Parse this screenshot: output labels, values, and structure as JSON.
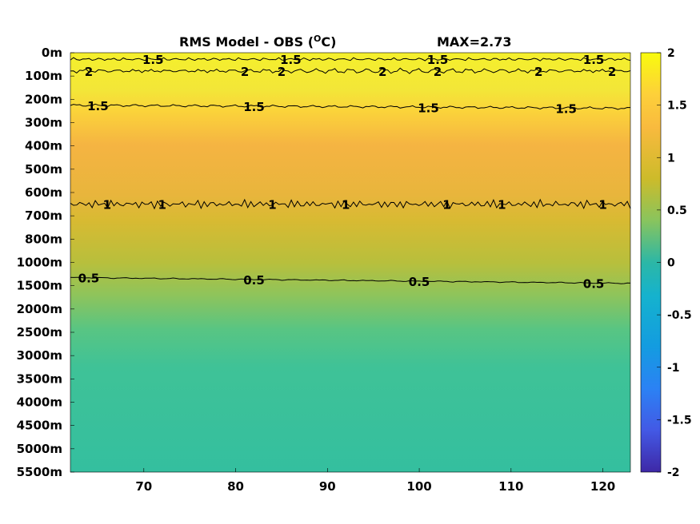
{
  "chart_data": {
    "type": "heatmap",
    "title": "RMS Model - OBS (",
    "title_superscript": "O",
    "title_unit": "C)",
    "max_label": "MAX=2.73",
    "x_ticks": [
      70,
      80,
      90,
      100,
      110,
      120
    ],
    "x_range": [
      62,
      123
    ],
    "y_ticks": [
      "0m",
      "100m",
      "200m",
      "300m",
      "400m",
      "500m",
      "600m",
      "700m",
      "800m",
      "1000m",
      "1500m",
      "2000m",
      "2500m",
      "3000m",
      "3500m",
      "4000m",
      "4500m",
      "5000m",
      "5500m"
    ],
    "colorbar": {
      "ticks": [
        2,
        1.5,
        1,
        0.5,
        0,
        -0.5,
        -1,
        -1.5,
        -2
      ],
      "range": [
        -2,
        2
      ],
      "colormap": "parula"
    },
    "depth_profile": [
      {
        "level": "0m",
        "value": 2.0
      },
      {
        "level": "100m",
        "value": 1.75
      },
      {
        "level": "200m",
        "value": 1.55
      },
      {
        "level": "300m",
        "value": 1.4
      },
      {
        "level": "400m",
        "value": 1.3
      },
      {
        "level": "500m",
        "value": 1.2
      },
      {
        "level": "600m",
        "value": 1.1
      },
      {
        "level": "700m",
        "value": 0.98
      },
      {
        "level": "800m",
        "value": 0.82
      },
      {
        "level": "1000m",
        "value": 0.65
      },
      {
        "level": "1500m",
        "value": 0.48
      },
      {
        "level": "2000m",
        "value": 0.4
      },
      {
        "level": "2500m",
        "value": 0.37
      },
      {
        "level": "3000m",
        "value": 0.35
      },
      {
        "level": "3500m",
        "value": 0.34
      },
      {
        "level": "4000m",
        "value": 0.33
      },
      {
        "level": "4500m",
        "value": 0.32
      },
      {
        "level": "5000m",
        "value": 0.32
      },
      {
        "level": "5500m",
        "value": 0.32
      }
    ],
    "contours": [
      {
        "value": "1.5",
        "label_x": [
          71,
          86,
          102,
          119
        ]
      },
      {
        "value": "2",
        "label_x": [
          64,
          81,
          85,
          96,
          102,
          113,
          121
        ]
      },
      {
        "value": "1.5",
        "label_x": [
          65,
          82,
          101,
          116
        ]
      },
      {
        "value": "1",
        "label_x": [
          66,
          72,
          84,
          92,
          103,
          109,
          120
        ]
      },
      {
        "value": "0.5",
        "label_x": [
          64,
          82,
          100,
          119
        ]
      }
    ]
  }
}
